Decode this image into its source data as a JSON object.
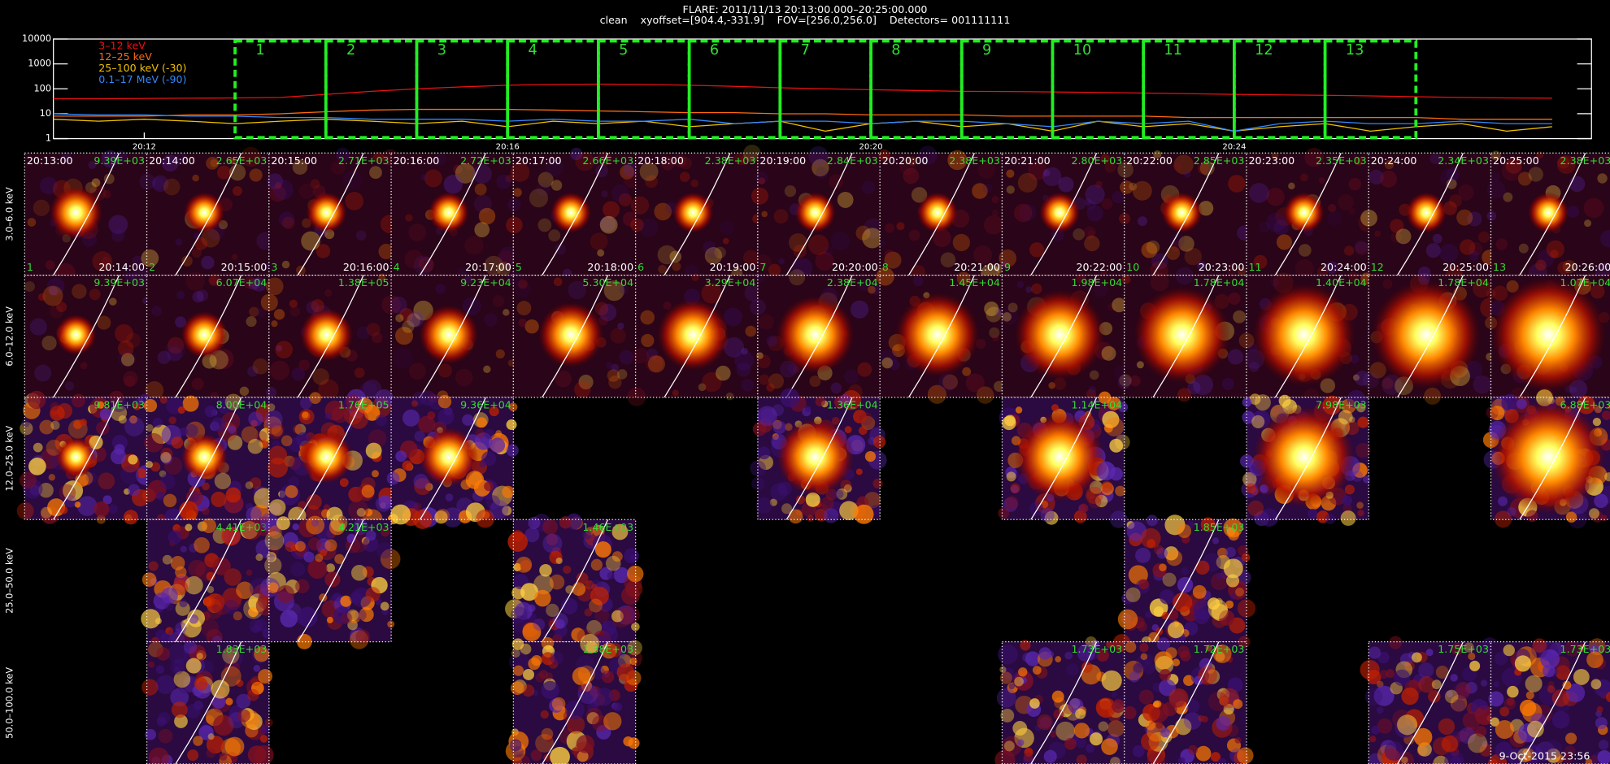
{
  "header": {
    "title": "FLARE: 2011/11/13 20:13:00.000–20:25:00.000",
    "subtitle": "clean    xyoffset=[904.4,-331.9]    FOV=[256.0,256.0]    Detectors= 001111111"
  },
  "chart_data": {
    "type": "line",
    "log_y": true,
    "ylim": [
      1,
      10000
    ],
    "yticks": [
      1,
      10,
      100,
      1000,
      10000
    ],
    "xlim": [
      "20:11:00",
      "20:27:56"
    ],
    "xticks": [
      "20:12",
      "20:16",
      "20:20",
      "20:24"
    ],
    "x": [
      "20:11:00",
      "20:11:30",
      "20:12:00",
      "20:12:30",
      "20:13:00",
      "20:13:30",
      "20:14:00",
      "20:14:30",
      "20:15:00",
      "20:15:30",
      "20:16:00",
      "20:16:30",
      "20:17:00",
      "20:17:30",
      "20:18:00",
      "20:18:30",
      "20:19:00",
      "20:19:30",
      "20:20:00",
      "20:20:30",
      "20:21:00",
      "20:21:30",
      "20:22:00",
      "20:22:30",
      "20:23:00",
      "20:23:30",
      "20:24:00",
      "20:24:30",
      "20:25:00",
      "20:25:30",
      "20:26:00",
      "20:26:30",
      "20:27:00",
      "20:27:30"
    ],
    "series": [
      {
        "name": "3–12 keV",
        "color": "#ee1111",
        "values": [
          40,
          40,
          41,
          42,
          43,
          45,
          60,
          80,
          100,
          120,
          140,
          150,
          155,
          150,
          140,
          125,
          110,
          100,
          92,
          86,
          80,
          78,
          75,
          72,
          68,
          64,
          60,
          57,
          55,
          52,
          48,
          45,
          43,
          42
        ]
      },
      {
        "name": "12–25 keV",
        "color": "#ff6a10",
        "values": [
          8,
          8,
          8,
          9,
          9,
          10,
          12,
          14,
          15,
          15,
          15,
          14,
          13,
          12,
          11,
          11,
          10,
          10,
          9,
          9,
          9,
          8,
          8,
          8,
          8,
          7,
          7,
          7,
          7,
          7,
          7,
          6,
          6,
          6
        ]
      },
      {
        "name": "25–100 keV (-30)",
        "color": "#f0c000",
        "values": [
          6,
          5,
          6,
          5,
          4,
          5,
          6,
          5,
          4,
          5,
          3,
          5,
          4,
          5,
          3,
          4,
          5,
          2,
          4,
          5,
          3,
          4,
          2,
          5,
          3,
          4,
          2,
          3,
          4,
          2,
          3,
          4,
          2,
          3
        ]
      },
      {
        "name": "0.1–17 MeV (-90)",
        "color": "#3388ff",
        "values": [
          10,
          9,
          9,
          8,
          8,
          7,
          7,
          6,
          6,
          6,
          5,
          6,
          5,
          5,
          6,
          4,
          5,
          5,
          4,
          5,
          5,
          4,
          3,
          5,
          4,
          5,
          2,
          4,
          5,
          4,
          4,
          5,
          4,
          4
        ]
      }
    ],
    "intervals": [
      {
        "label": "1",
        "start": "20:13:00",
        "end": "20:14:00"
      },
      {
        "label": "2",
        "start": "20:14:00",
        "end": "20:15:00"
      },
      {
        "label": "3",
        "start": "20:15:00",
        "end": "20:16:00"
      },
      {
        "label": "4",
        "start": "20:16:00",
        "end": "20:17:00"
      },
      {
        "label": "5",
        "start": "20:17:00",
        "end": "20:18:00"
      },
      {
        "label": "6",
        "start": "20:18:00",
        "end": "20:19:00"
      },
      {
        "label": "7",
        "start": "20:19:00",
        "end": "20:20:00"
      },
      {
        "label": "8",
        "start": "20:20:00",
        "end": "20:21:00"
      },
      {
        "label": "9",
        "start": "20:21:00",
        "end": "20:22:00"
      },
      {
        "label": "10",
        "start": "20:22:00",
        "end": "20:23:00"
      },
      {
        "label": "11",
        "start": "20:23:00",
        "end": "20:24:00"
      },
      {
        "label": "12",
        "start": "20:24:00",
        "end": "20:25:00"
      },
      {
        "label": "13",
        "start": "20:25:00",
        "end": "20:26:00"
      }
    ]
  },
  "image_grid": {
    "rows": [
      {
        "label": "3.0–6.0 keV",
        "peaks": [
          "9.39E+03",
          "2.65E+03",
          "2.71E+03",
          "2.72E+03",
          "2.66E+03",
          "2.38E+03",
          "2.84E+03",
          "2.38E+03",
          "2.80E+03",
          "2.85E+03",
          "2.35E+03",
          "2.34E+03",
          "2.38E+03"
        ]
      },
      {
        "label": "6.0–12.0 keV",
        "peaks": [
          "9.39E+03",
          "6.07E+04",
          "1.38E+05",
          "9.23E+04",
          "5.30E+04",
          "3.29E+04",
          "2.38E+04",
          "1.45E+04",
          "1.98E+04",
          "1.78E+04",
          "1.40E+04",
          "1.78E+04",
          "1.07E+04"
        ]
      },
      {
        "label": "12.0–25.0 keV",
        "peaks": [
          "9.81E+03",
          "8.00E+04",
          "1.76E+05",
          "9.36E+04",
          null,
          null,
          "1.36E+04",
          null,
          "1.14E+04",
          null,
          "7.98E+03",
          null,
          "6.88E+03"
        ]
      },
      {
        "label": "25.0–50.0 keV",
        "peaks": [
          null,
          "4.41E+03",
          "4.21E+03",
          null,
          "1.46E+03",
          null,
          null,
          null,
          null,
          "1.85E+03",
          null,
          null,
          null
        ]
      },
      {
        "label": "50.0–100.0 keV",
        "peaks": [
          null,
          "1.83E+03",
          null,
          null,
          "1.38E+03",
          null,
          null,
          null,
          "1.73E+03",
          "1.72E+03",
          null,
          "1.75E+03",
          "1.73E+03"
        ]
      }
    ]
  },
  "footer": {
    "timestamp": "9-Oct-2015 23:56"
  }
}
